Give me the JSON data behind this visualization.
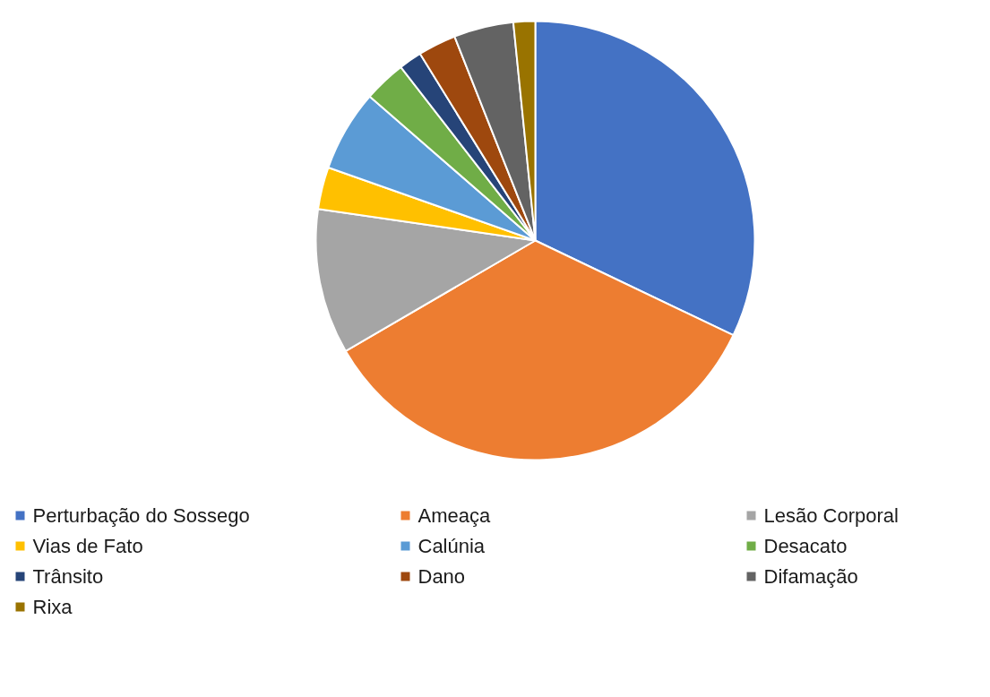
{
  "chart_data": {
    "type": "pie",
    "categories": [
      "Perturbação do Sossego",
      "Ameaça",
      "Lesão Corporal",
      "Vias de Fato",
      "Calúnia",
      "Desacato",
      "Trânsito",
      "Dano",
      "Difamação",
      "Rixa"
    ],
    "values": [
      32.1,
      34.5,
      10.7,
      3.1,
      6.0,
      3.1,
      1.7,
      2.8,
      4.4,
      1.6
    ],
    "colors": [
      "#4472c4",
      "#ed7d31",
      "#a5a5a5",
      "#ffc000",
      "#5b9bd5",
      "#70ad47",
      "#264478",
      "#9e480e",
      "#636363",
      "#997300"
    ],
    "legend": "bottom"
  }
}
